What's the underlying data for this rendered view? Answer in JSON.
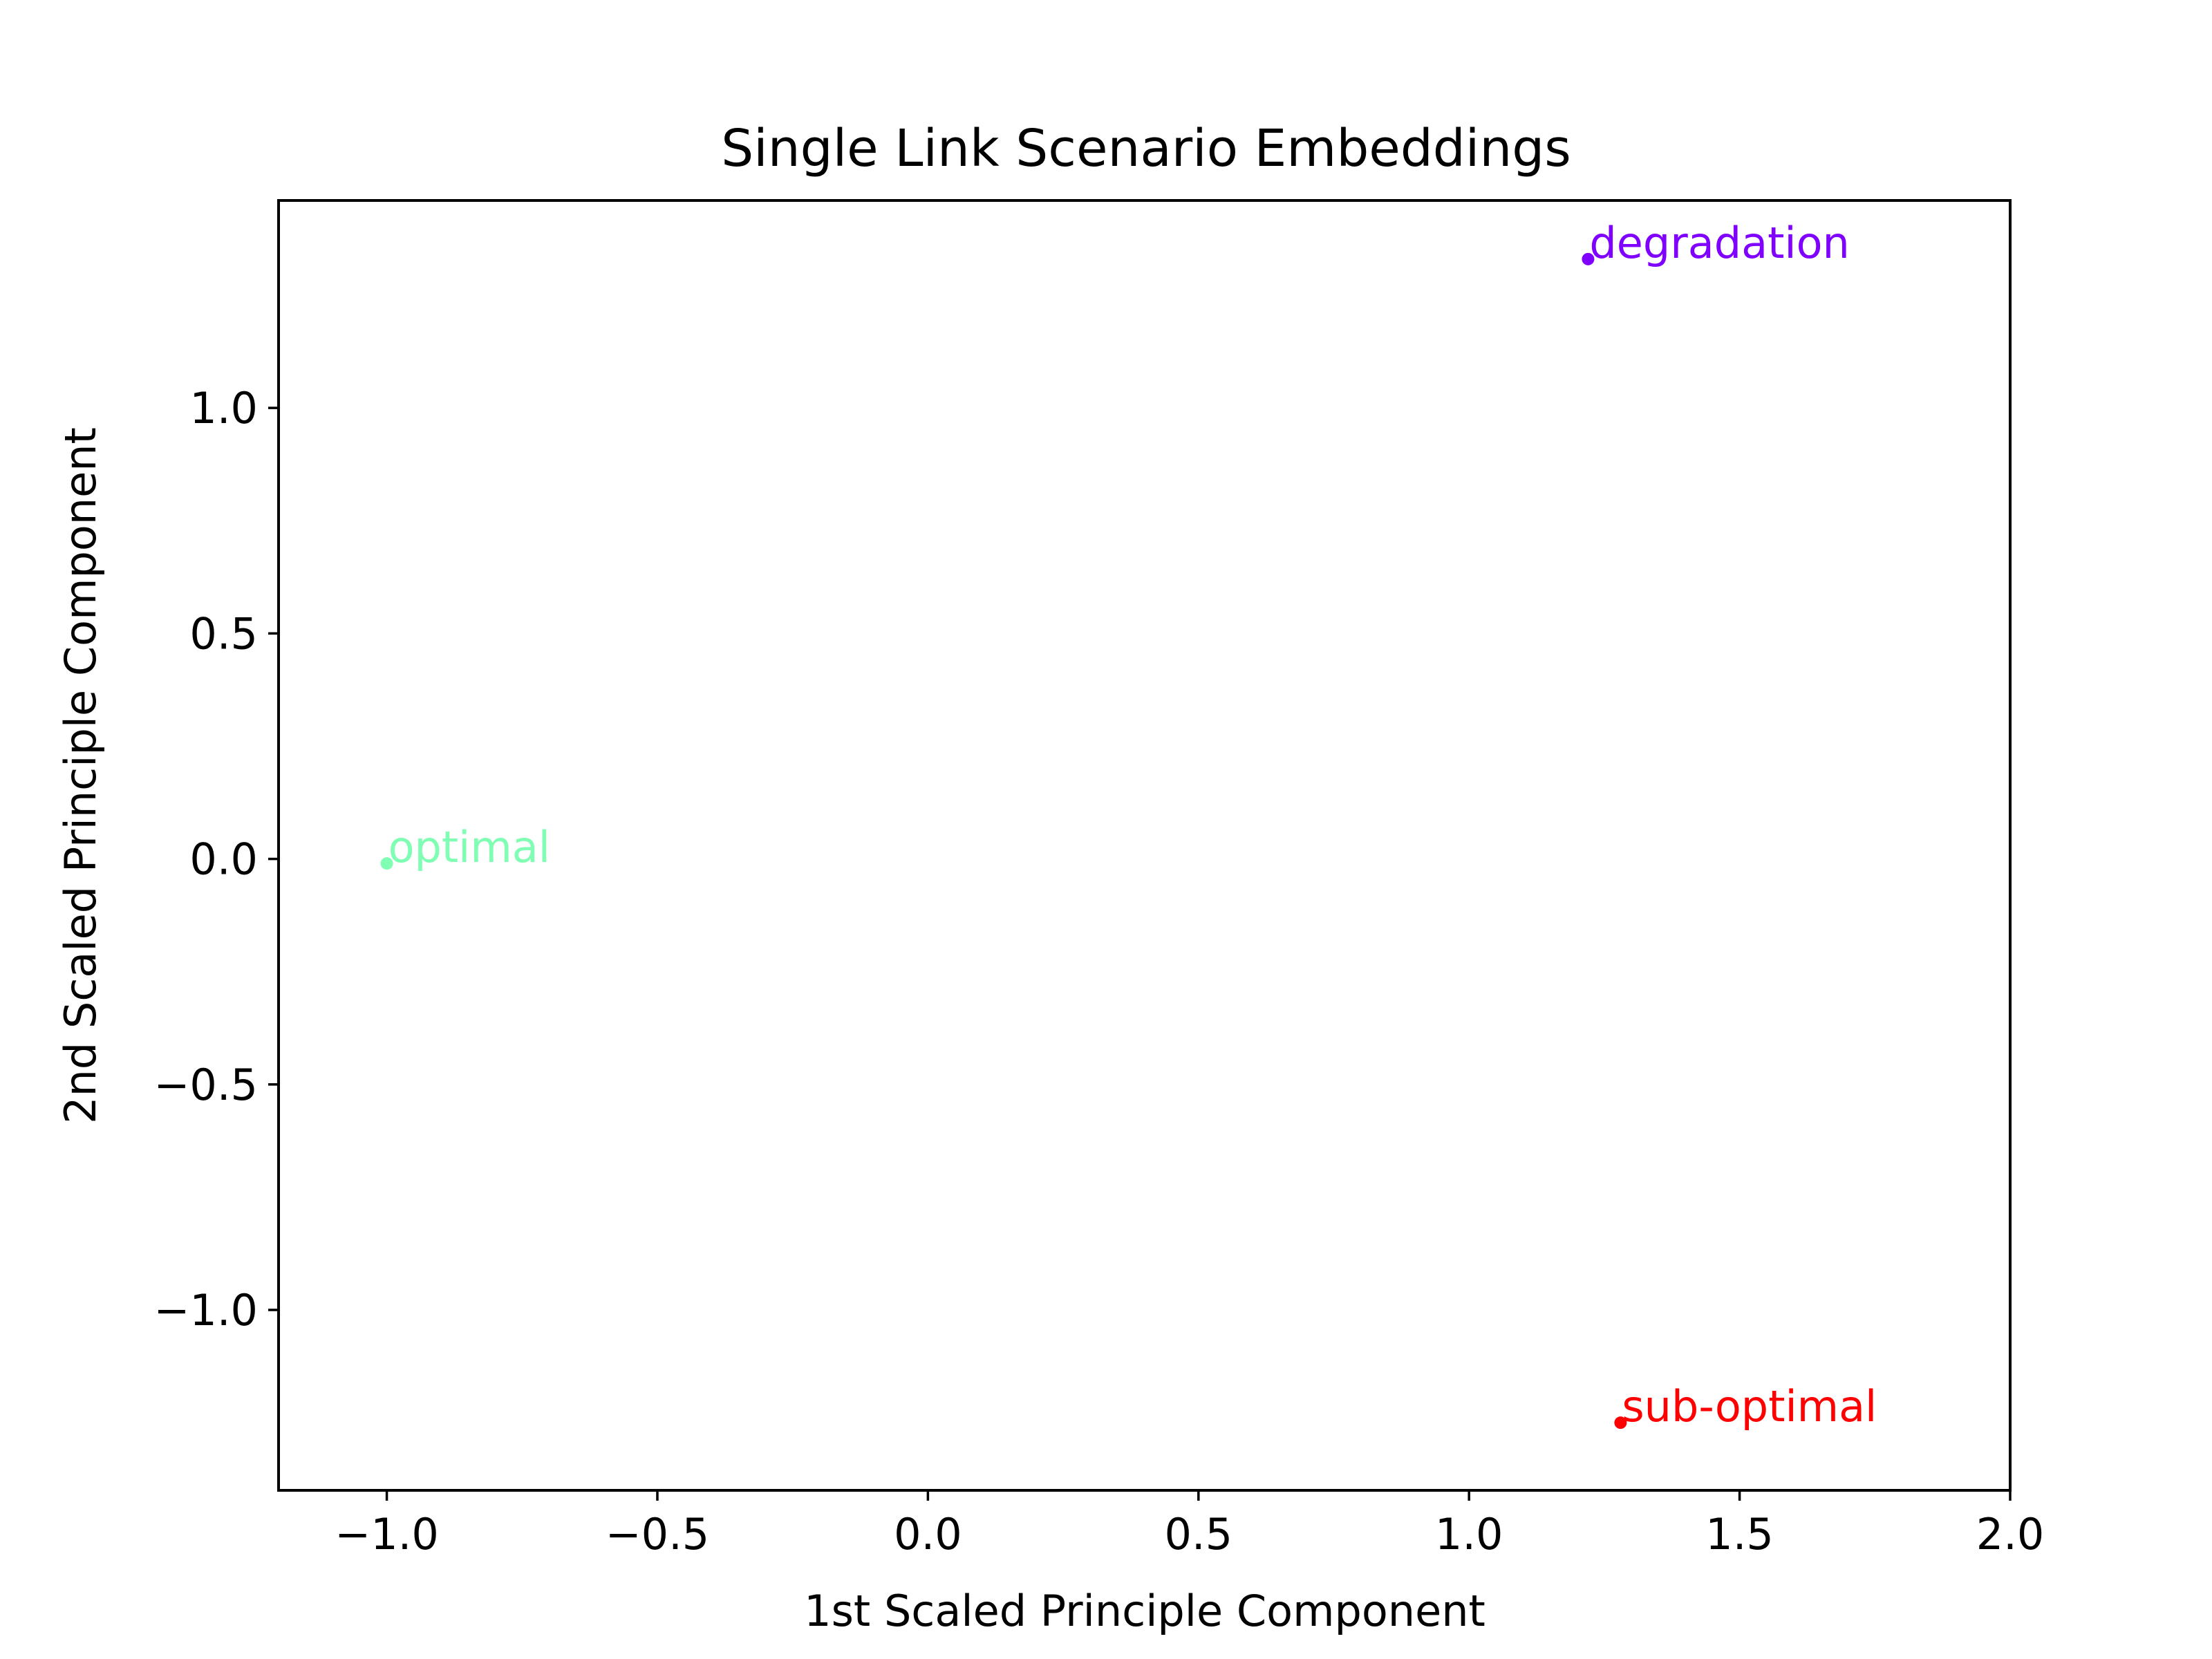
{
  "chart_data": {
    "type": "scatter",
    "title": "Single Link Scenario Embeddings",
    "xlabel": "1st Scaled Principle Component",
    "ylabel": "2nd Scaled Principle Component",
    "xlim": [
      -1.2,
      2.0
    ],
    "ylim": [
      -1.4,
      1.46
    ],
    "grid": false,
    "legend": "none",
    "x_ticks": [
      -1.0,
      -0.5,
      0.0,
      0.5,
      1.0,
      1.5,
      2.0
    ],
    "x_tick_labels": [
      "−1.0",
      "−0.5",
      "0.0",
      "0.5",
      "1.0",
      "1.5",
      "2.0"
    ],
    "y_ticks": [
      1.0,
      0.5,
      0.0,
      -0.5,
      -1.0
    ],
    "y_tick_labels": [
      "1.0",
      "0.5",
      "0.0",
      "−0.5",
      "−1.0"
    ],
    "points": [
      {
        "label": "degradation",
        "x": 1.22,
        "y": 1.33,
        "color": "#8000ff"
      },
      {
        "label": "optimal",
        "x": -1.0,
        "y": -0.01,
        "color": "#80ffb4"
      },
      {
        "label": "sub-optimal",
        "x": 1.28,
        "y": -1.25,
        "color": "#ff0000"
      }
    ]
  }
}
